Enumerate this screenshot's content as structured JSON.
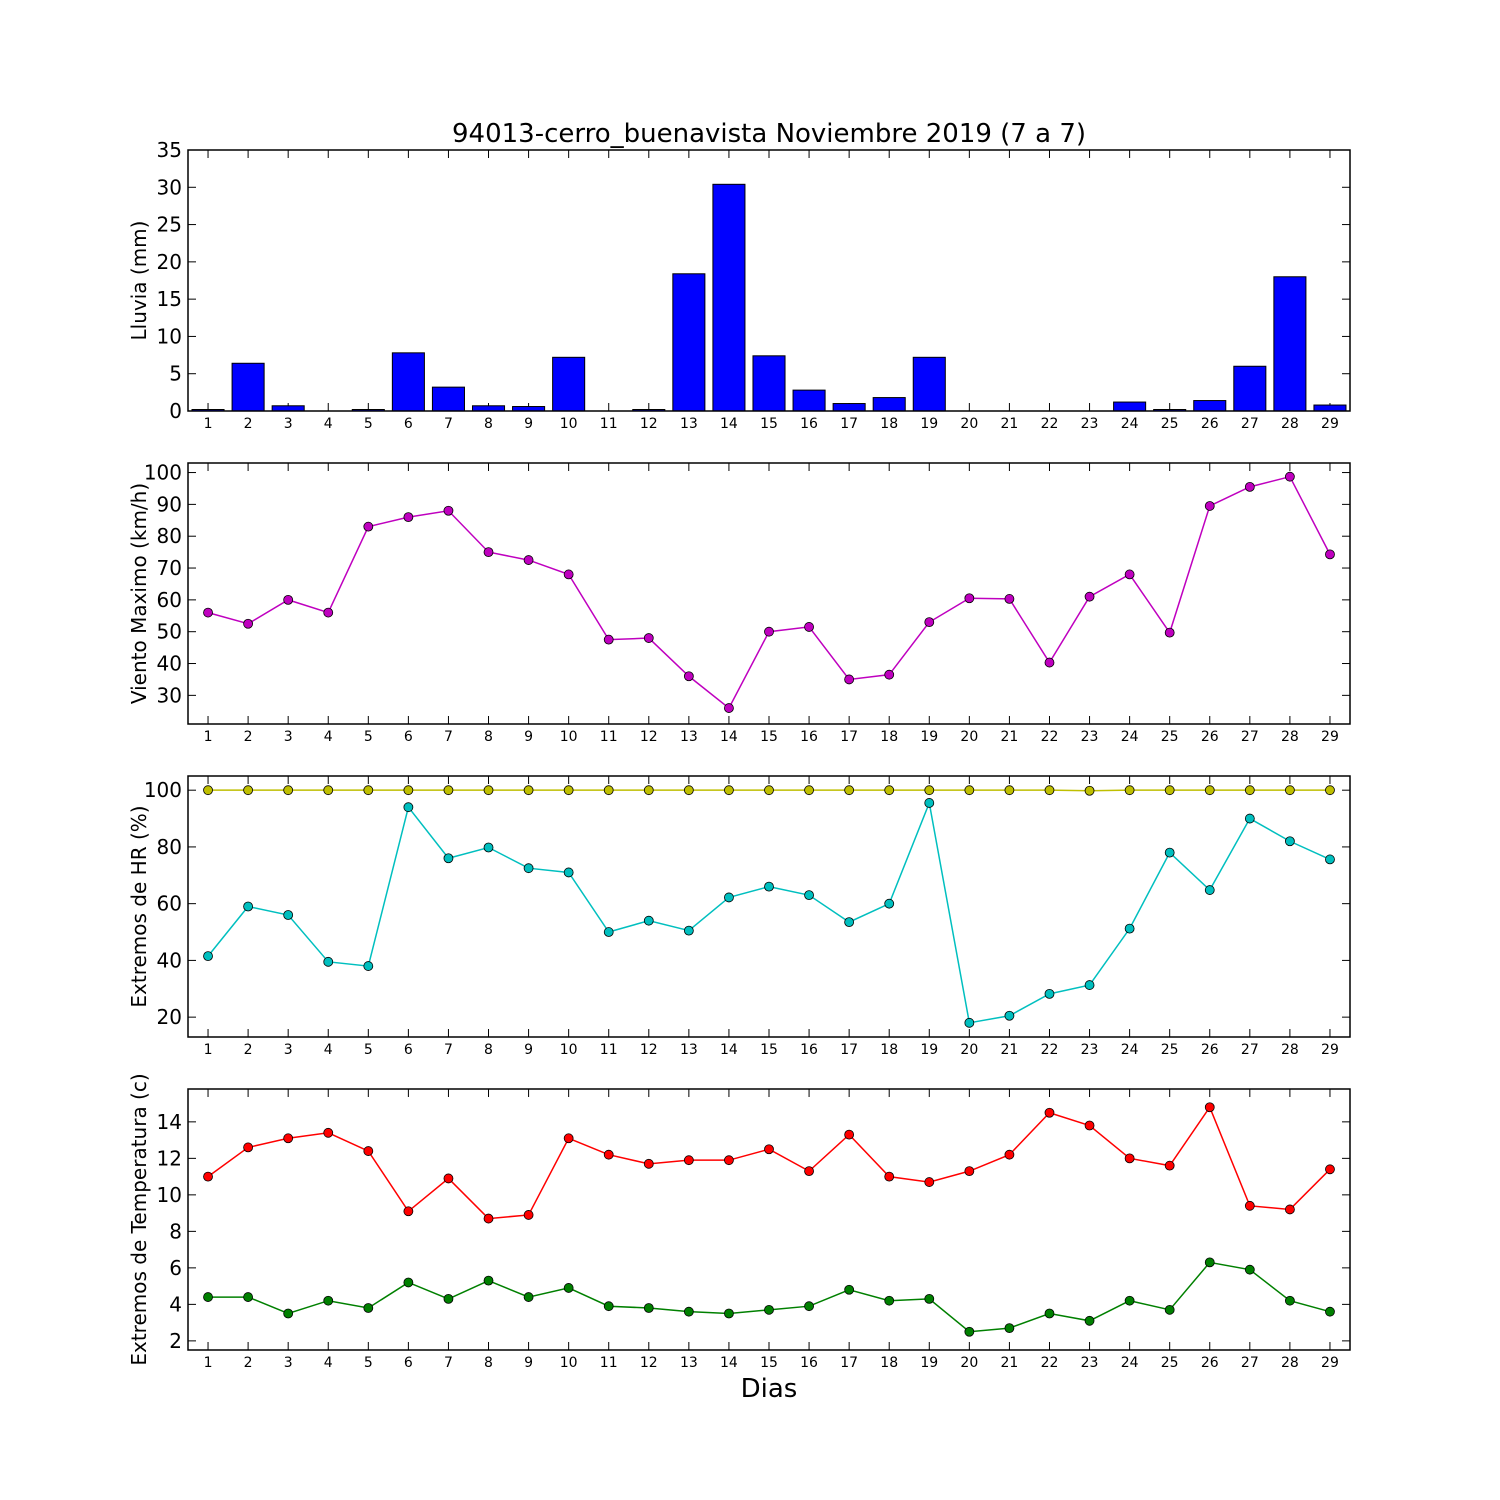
{
  "title": "94013-cerro_buenavista Noviembre 2019  (7 a 7)",
  "xlabel": "Dias",
  "chart_data": [
    {
      "type": "bar",
      "ylabel": "Lluvia (mm)",
      "ylim": [
        0,
        35
      ],
      "yticks": [
        0,
        5,
        10,
        15,
        20,
        25,
        30,
        35
      ],
      "color": "#0000ff",
      "categories": [
        1,
        2,
        3,
        4,
        5,
        6,
        7,
        8,
        9,
        10,
        11,
        12,
        13,
        14,
        15,
        16,
        17,
        18,
        19,
        20,
        21,
        22,
        23,
        24,
        25,
        26,
        27,
        28,
        29
      ],
      "values": [
        0.2,
        6.4,
        0.7,
        0,
        0.2,
        7.8,
        3.2,
        0.7,
        0.6,
        7.2,
        0,
        0.2,
        18.4,
        30.4,
        7.4,
        2.8,
        1.0,
        1.8,
        7.2,
        0,
        0,
        0,
        0,
        1.2,
        0.2,
        1.4,
        6.0,
        18.0,
        0.8
      ]
    },
    {
      "type": "line",
      "ylabel": "Viento Maximo (km/h)",
      "ylim": [
        21,
        103
      ],
      "yticks": [
        30,
        40,
        50,
        60,
        70,
        80,
        90,
        100
      ],
      "x": [
        1,
        2,
        3,
        4,
        5,
        6,
        7,
        8,
        9,
        10,
        11,
        12,
        13,
        14,
        15,
        16,
        17,
        18,
        19,
        20,
        21,
        22,
        23,
        24,
        25,
        26,
        27,
        28,
        29
      ],
      "series": [
        {
          "color": "#bf00bf",
          "values": [
            56,
            52.5,
            60,
            56,
            83,
            86,
            88,
            75,
            72.5,
            68,
            47.5,
            48,
            36,
            26,
            50,
            51.5,
            35,
            36.5,
            53,
            60.5,
            60.3,
            40.3,
            61,
            68,
            49.7,
            89.5,
            95.5,
            98.7,
            74.3
          ]
        }
      ]
    },
    {
      "type": "line",
      "ylabel": "Extremos de HR (%)",
      "ylim": [
        13,
        105
      ],
      "yticks": [
        20,
        40,
        60,
        80,
        100
      ],
      "x": [
        1,
        2,
        3,
        4,
        5,
        6,
        7,
        8,
        9,
        10,
        11,
        12,
        13,
        14,
        15,
        16,
        17,
        18,
        19,
        20,
        21,
        22,
        23,
        24,
        25,
        26,
        27,
        28,
        29
      ],
      "series": [
        {
          "color": "#bfbf00",
          "values": [
            100,
            100,
            100,
            100,
            100,
            100,
            100,
            100,
            100,
            100,
            100,
            100,
            100,
            100,
            100,
            100,
            100,
            100,
            100,
            100,
            100,
            100,
            99.8,
            100,
            100,
            100,
            100,
            100,
            100
          ]
        },
        {
          "color": "#00bfbf",
          "values": [
            41.5,
            59,
            56,
            39.5,
            38,
            94,
            76,
            79.8,
            72.5,
            71,
            50,
            54,
            50.5,
            62.2,
            66,
            63,
            53.5,
            60,
            95.5,
            18,
            20.5,
            28.2,
            31.3,
            51.2,
            78,
            64.8,
            90,
            82,
            75.6
          ]
        }
      ]
    },
    {
      "type": "line",
      "ylabel": "Extremos de Temperatura (c)",
      "ylim": [
        1.5,
        15.8
      ],
      "yticks": [
        2,
        4,
        6,
        8,
        10,
        12,
        14
      ],
      "x": [
        1,
        2,
        3,
        4,
        5,
        6,
        7,
        8,
        9,
        10,
        11,
        12,
        13,
        14,
        15,
        16,
        17,
        18,
        19,
        20,
        21,
        22,
        23,
        24,
        25,
        26,
        27,
        28,
        29
      ],
      "series": [
        {
          "color": "#ff0000",
          "values": [
            11,
            12.6,
            13.1,
            13.4,
            12.4,
            9.1,
            10.9,
            8.7,
            8.9,
            13.1,
            12.2,
            11.7,
            11.9,
            11.9,
            12.5,
            11.3,
            13.3,
            11,
            10.7,
            11.3,
            12.2,
            14.5,
            13.8,
            12,
            11.6,
            14.8,
            9.4,
            9.2,
            11.4
          ]
        },
        {
          "color": "#008000",
          "values": [
            4.4,
            4.4,
            3.5,
            4.2,
            3.8,
            5.2,
            4.3,
            5.3,
            4.4,
            4.9,
            3.9,
            3.8,
            3.6,
            3.5,
            3.7,
            3.9,
            4.8,
            4.2,
            4.3,
            2.5,
            2.7,
            3.5,
            3.1,
            4.2,
            3.7,
            6.3,
            5.9,
            4.2,
            3.6
          ]
        }
      ]
    }
  ]
}
